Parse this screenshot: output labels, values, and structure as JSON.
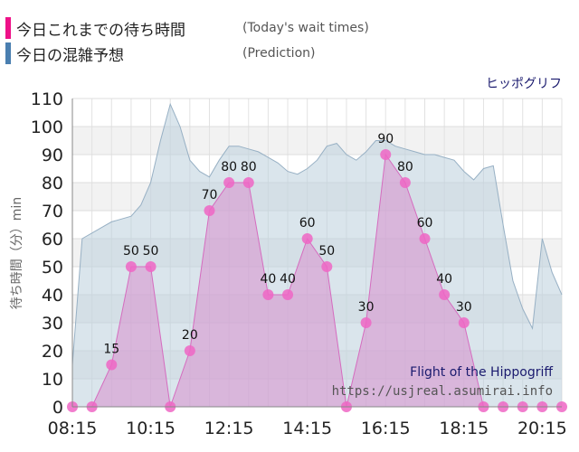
{
  "legend": {
    "wait": {
      "label": "今日これまでの待ち時間",
      "sublabel": "(Today's wait times)",
      "color": "#ee1188"
    },
    "prediction": {
      "label": "今日の混雑予想",
      "sublabel": "(Prediction)",
      "color": "#4a7fb0"
    }
  },
  "chart_data": {
    "type": "area",
    "title": "ヒッポグリフ",
    "ylabel": "待ち時間（分）min",
    "ylim": [
      0,
      110
    ],
    "yticks": [
      0,
      10,
      20,
      30,
      40,
      50,
      60,
      70,
      80,
      90,
      100,
      110
    ],
    "xlim": [
      "08:15",
      "20:45"
    ],
    "xticks": [
      "08:15",
      "10:15",
      "12:15",
      "14:15",
      "16:15",
      "18:15",
      "20:15"
    ],
    "grid": true,
    "watermark": {
      "name": "Flight of the Hippogriff",
      "url": "https://usjreal.asumirai.info"
    },
    "series": [
      {
        "name": "今日の混雑予想",
        "kind": "prediction",
        "color": "#a9bfd0",
        "x": [
          "08:15",
          "08:30",
          "08:45",
          "09:00",
          "09:15",
          "09:30",
          "09:45",
          "10:00",
          "10:15",
          "10:30",
          "10:45",
          "11:00",
          "11:15",
          "11:30",
          "11:45",
          "12:00",
          "12:15",
          "12:30",
          "12:45",
          "13:00",
          "13:15",
          "13:30",
          "13:45",
          "14:00",
          "14:15",
          "14:30",
          "14:45",
          "15:00",
          "15:15",
          "15:30",
          "15:45",
          "16:00",
          "16:15",
          "16:30",
          "16:45",
          "17:00",
          "17:15",
          "17:30",
          "17:45",
          "18:00",
          "18:15",
          "18:30",
          "18:45",
          "19:00",
          "19:15",
          "19:30",
          "19:45",
          "20:00",
          "20:15",
          "20:30",
          "20:45"
        ],
        "values": [
          15,
          60,
          62,
          64,
          66,
          67,
          68,
          72,
          80,
          95,
          108,
          100,
          88,
          84,
          82,
          88,
          93,
          93,
          92,
          91,
          89,
          87,
          84,
          83,
          85,
          88,
          93,
          94,
          90,
          88,
          91,
          95,
          95,
          93,
          92,
          91,
          90,
          90,
          89,
          88,
          84,
          81,
          85,
          86,
          65,
          45,
          35,
          28,
          60,
          48,
          40
        ]
      },
      {
        "name": "今日これまでの待ち時間",
        "kind": "wait",
        "color": "#e85fbe",
        "x": [
          "08:15",
          "08:45",
          "09:15",
          "09:45",
          "10:15",
          "10:45",
          "11:15",
          "11:45",
          "12:15",
          "12:45",
          "13:15",
          "13:45",
          "14:15",
          "14:45",
          "15:15",
          "15:45",
          "16:15",
          "16:45",
          "17:15",
          "17:45",
          "18:15",
          "18:45",
          "19:15",
          "19:45",
          "20:15",
          "20:45"
        ],
        "values": [
          0,
          0,
          15,
          50,
          50,
          0,
          20,
          70,
          80,
          80,
          40,
          40,
          60,
          50,
          0,
          30,
          90,
          80,
          60,
          40,
          30,
          0,
          0,
          0,
          0,
          0
        ],
        "labels": [
          null,
          null,
          "15",
          "50",
          "50",
          null,
          "20",
          "70",
          "80",
          "80",
          "40",
          "40",
          "60",
          "50",
          null,
          "30",
          "90",
          "80",
          "60",
          "40",
          "30",
          null,
          null,
          null,
          null,
          null
        ]
      }
    ]
  }
}
